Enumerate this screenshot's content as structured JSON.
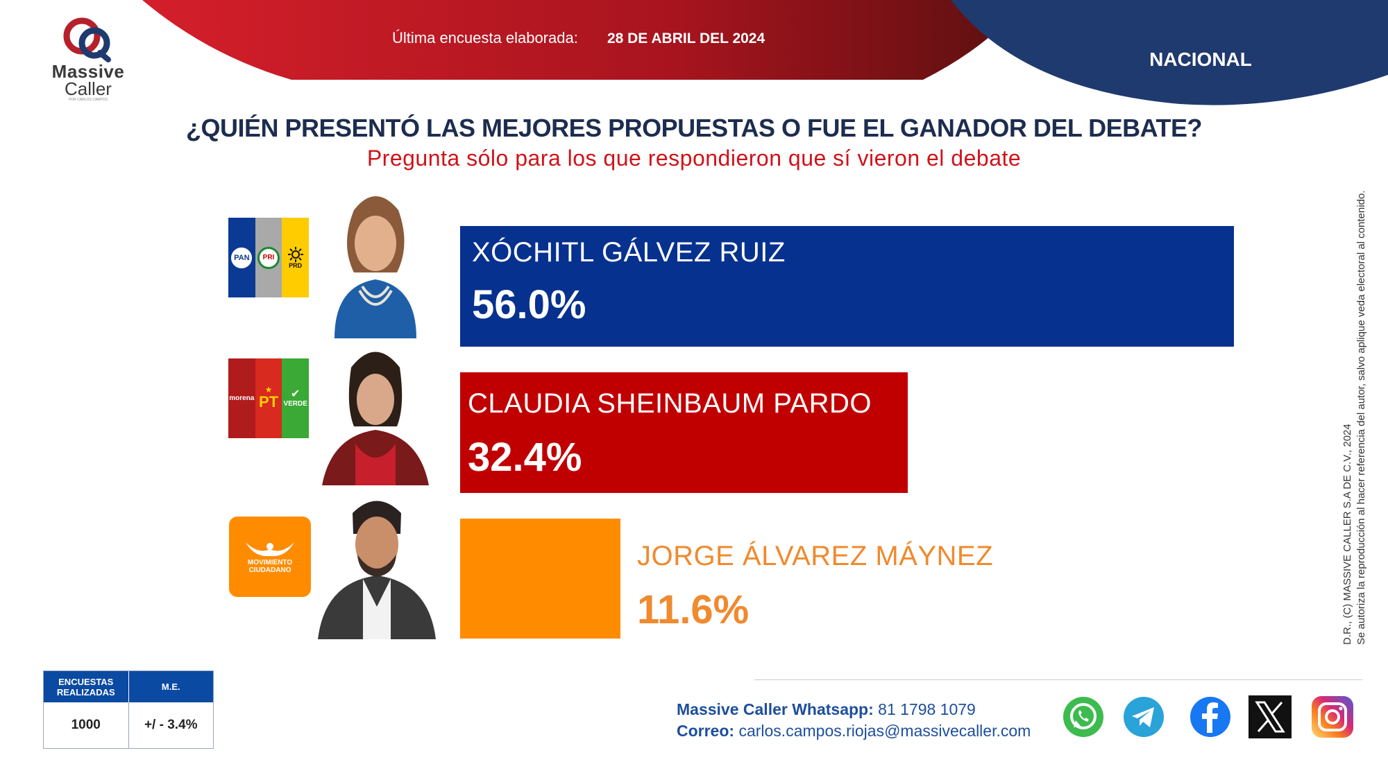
{
  "brand": {
    "word1": "Massive",
    "word2": "Caller",
    "tagline": "POR CARLOS CAMPOS"
  },
  "header": {
    "survey_label": "Última encuesta elaborada:",
    "survey_date": "28 DE ABRIL DEL 2024",
    "scope": "NACIONAL"
  },
  "question": "¿QUIÉN PRESENTÓ LAS MEJORES PROPUESTAS O FUE EL GANADOR DEL DEBATE?",
  "subquestion": "Pregunta sólo para los que respondieron que sí vieron el debate",
  "parties": {
    "pan": "PAN",
    "pri": "PRI",
    "prd": "PRD",
    "morena": "morena",
    "pt": "PT",
    "verde": "VERDE",
    "mc_line1": "MOVIMIENTO",
    "mc_line2": "CIUDADANO"
  },
  "chart_data": {
    "type": "bar",
    "orientation": "horizontal",
    "categories": [
      "XÓCHITL GÁLVEZ RUIZ",
      "CLAUDIA SHEINBAUM PARDO",
      "JORGE ÁLVAREZ MÁYNEZ"
    ],
    "values": [
      56.0,
      32.4,
      11.6
    ],
    "labels": [
      "56.0%",
      "32.4%",
      "11.6%"
    ],
    "colors": [
      "#06318f",
      "#c00000",
      "#ff8c00"
    ],
    "xlim": [
      0,
      56.0
    ]
  },
  "footer": {
    "surveys_header": "ENCUESTAS REALIZADAS",
    "me_header": "M.E.",
    "surveys_value": "1000",
    "me_value": "+/ - 3.4%",
    "whatsapp_label": "Massive Caller Whatsapp:",
    "whatsapp_value": "81 1798 1079",
    "email_label": "Correo:",
    "email_value": "carlos.campos.riojas@massivecaller.com",
    "legal": "D.R., (C) MASSIVE CALLER S.A DE C.V., 2024",
    "legal2": "Se autoriza la reproducción al hacer referencia del autor, salvo aplique veda electoral al contenido."
  },
  "social_icons": [
    "whatsapp-icon",
    "telegram-icon",
    "facebook-icon",
    "x-icon",
    "instagram-icon"
  ],
  "colors": {
    "navy": "#1c3668",
    "red": "#a81c22",
    "question": "#1d2d4f",
    "subquestion": "#d0121a"
  }
}
